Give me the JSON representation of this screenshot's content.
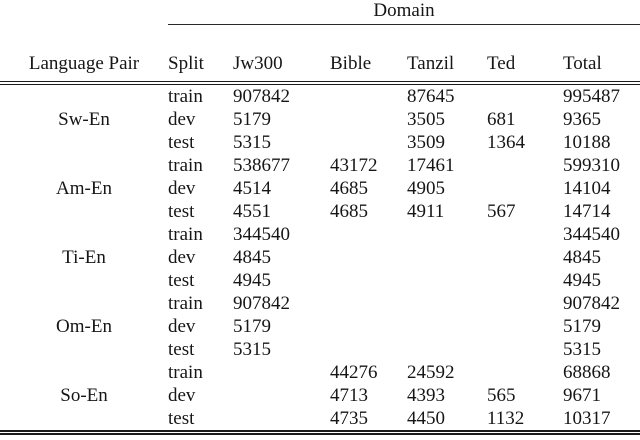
{
  "table": {
    "domain_header": "Domain",
    "columns": [
      "Language Pair",
      "Split",
      "Jw300",
      "Bible",
      "Tanzil",
      "Ted",
      "Total"
    ],
    "groups": [
      {
        "pair": "Sw-En",
        "rows": [
          {
            "split": "train",
            "jw300": "907842",
            "bible": "",
            "tanzil": "87645",
            "ted": "",
            "total": "995487"
          },
          {
            "split": "dev",
            "jw300": "5179",
            "bible": "",
            "tanzil": "3505",
            "ted": "681",
            "total": "9365"
          },
          {
            "split": "test",
            "jw300": "5315",
            "bible": "",
            "tanzil": "3509",
            "ted": "1364",
            "total": "10188"
          }
        ]
      },
      {
        "pair": "Am-En",
        "rows": [
          {
            "split": "train",
            "jw300": "538677",
            "bible": "43172",
            "tanzil": "17461",
            "ted": "",
            "total": "599310"
          },
          {
            "split": "dev",
            "jw300": "4514",
            "bible": "4685",
            "tanzil": "4905",
            "ted": "",
            "total": "14104"
          },
          {
            "split": "test",
            "jw300": "4551",
            "bible": "4685",
            "tanzil": "4911",
            "ted": "567",
            "total": "14714"
          }
        ]
      },
      {
        "pair": "Ti-En",
        "rows": [
          {
            "split": "train",
            "jw300": "344540",
            "bible": "",
            "tanzil": "",
            "ted": "",
            "total": "344540"
          },
          {
            "split": "dev",
            "jw300": "4845",
            "bible": "",
            "tanzil": "",
            "ted": "",
            "total": "4845"
          },
          {
            "split": "test",
            "jw300": "4945",
            "bible": "",
            "tanzil": "",
            "ted": "",
            "total": "4945"
          }
        ]
      },
      {
        "pair": "Om-En",
        "rows": [
          {
            "split": "train",
            "jw300": "907842",
            "bible": "",
            "tanzil": "",
            "ted": "",
            "total": "907842"
          },
          {
            "split": "dev",
            "jw300": "5179",
            "bible": "",
            "tanzil": "",
            "ted": "",
            "total": "5179"
          },
          {
            "split": "test",
            "jw300": "5315",
            "bible": "",
            "tanzil": "",
            "ted": "",
            "total": "5315"
          }
        ]
      },
      {
        "pair": "So-En",
        "rows": [
          {
            "split": "train",
            "jw300": "",
            "bible": "44276",
            "tanzil": "24592",
            "ted": "",
            "total": "68868"
          },
          {
            "split": "dev",
            "jw300": "",
            "bible": "4713",
            "tanzil": "4393",
            "ted": "565",
            "total": "9671"
          },
          {
            "split": "test",
            "jw300": "",
            "bible": "4735",
            "tanzil": "4450",
            "ted": "1132",
            "total": "10317"
          }
        ]
      }
    ]
  }
}
